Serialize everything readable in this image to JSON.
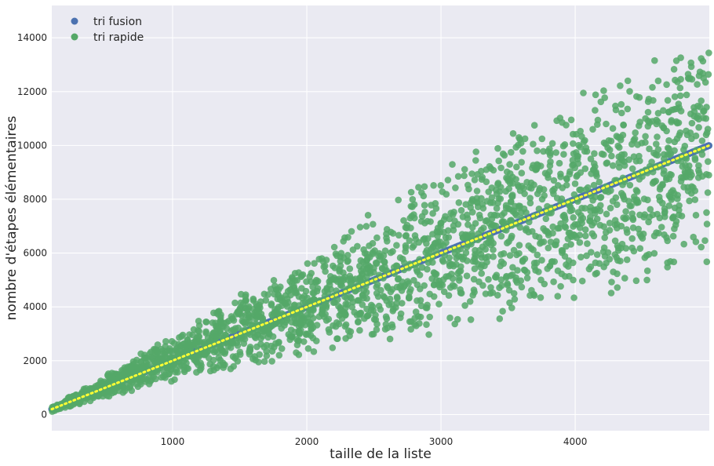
{
  "chart_data": {
    "type": "scatter",
    "title": "",
    "xlabel": "taille de la liste",
    "ylabel": "nombre d'étapes élémentaires",
    "xlim": [
      100,
      4999
    ],
    "ylim": [
      -600,
      15200
    ],
    "x_ticks": [
      1000,
      2000,
      3000,
      4000
    ],
    "y_ticks": [
      0,
      2000,
      4000,
      6000,
      8000,
      10000,
      12000,
      14000
    ],
    "grid": true,
    "legend": {
      "position": "top-left"
    },
    "colors": {
      "plot_background": "#eaeaf2",
      "grid": "#ffffff",
      "tri_fusion": "#4c72b0",
      "tri_rapide": "#55a868",
      "reference_line": "#ffff33"
    },
    "series": [
      {
        "name": "tri fusion",
        "kind": "points-dense",
        "x_range": [
          100,
          4999
        ],
        "y_at_x_min": 200,
        "y_at_x_max": 10000
      },
      {
        "name": "tri rapide",
        "kind": "scatter-cloud",
        "point_count": 2400,
        "x_range": [
          100,
          4999
        ],
        "upper_envelope": [
          [
            100,
            300
          ],
          [
            1000,
            3000
          ],
          [
            2000,
            6000
          ],
          [
            3000,
            9300
          ],
          [
            4000,
            12000
          ],
          [
            4999,
            14500
          ]
        ],
        "lower_envelope": [
          [
            100,
            100
          ],
          [
            1000,
            1200
          ],
          [
            2000,
            2000
          ],
          [
            3000,
            3000
          ],
          [
            4000,
            4000
          ],
          [
            4999,
            5100
          ]
        ]
      },
      {
        "kind": "reference-line-dotted",
        "points": [
          [
            100,
            200
          ],
          [
            4999,
            10000
          ]
        ]
      }
    ]
  }
}
